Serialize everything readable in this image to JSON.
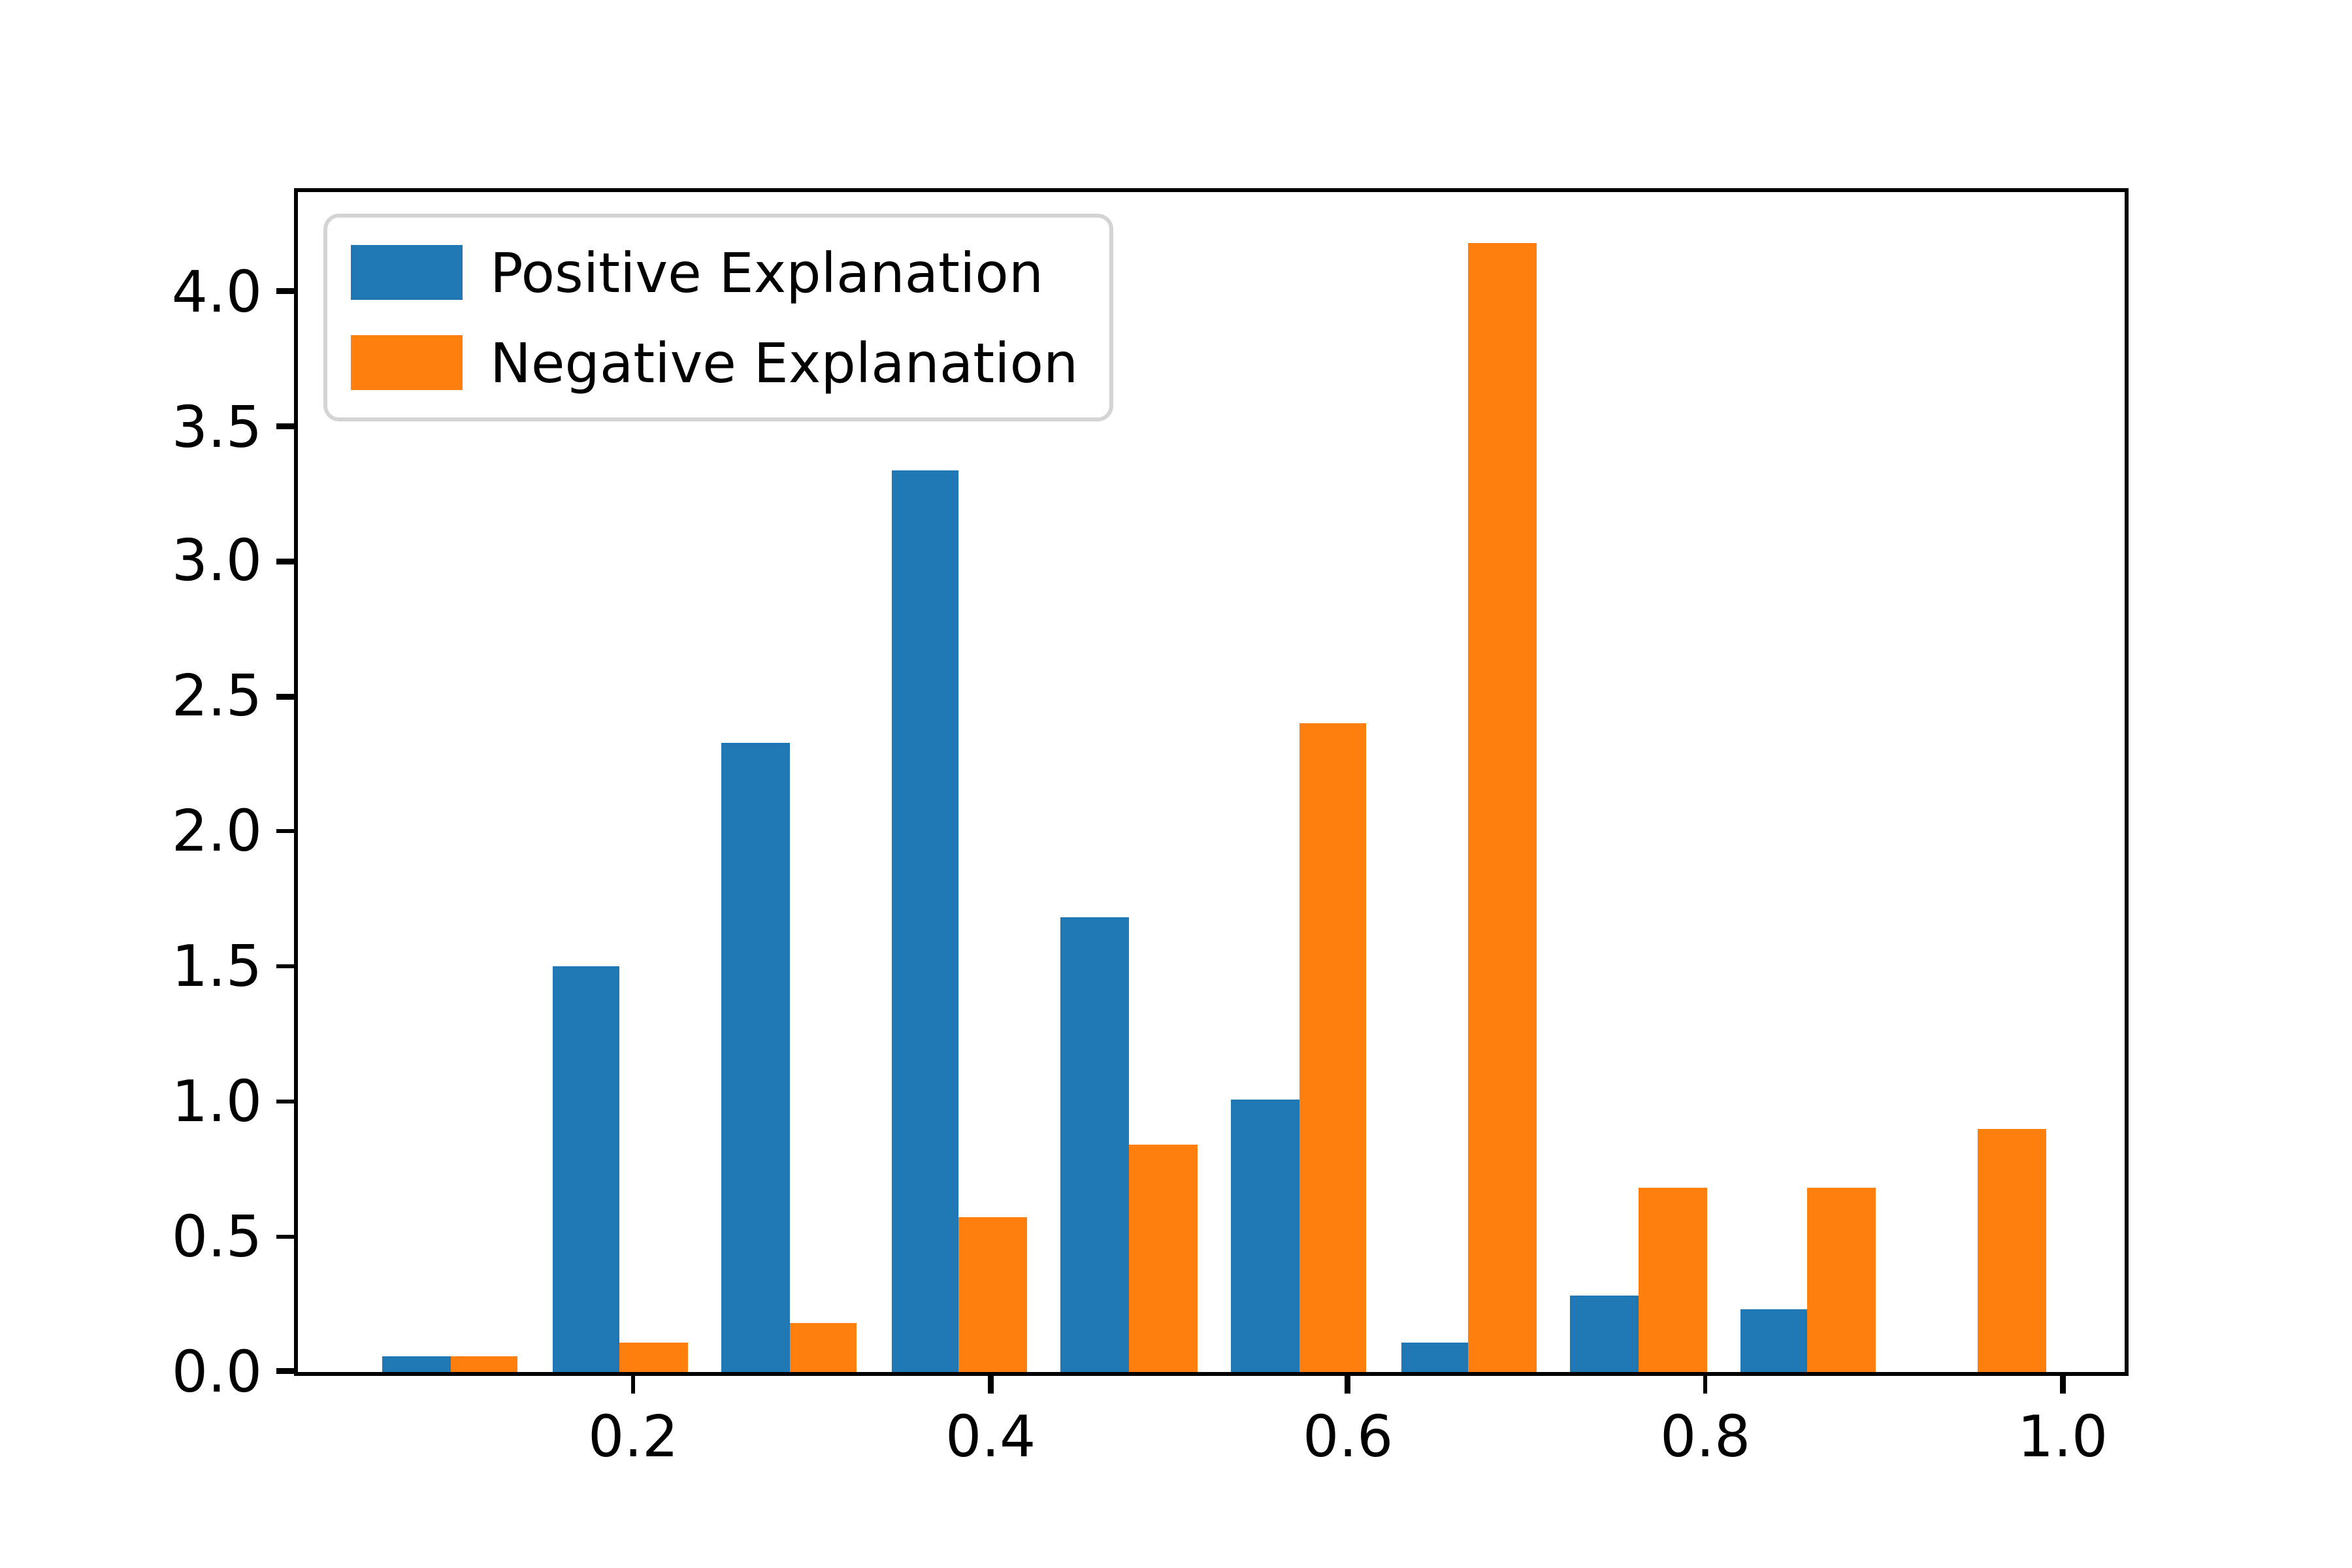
{
  "figure": {
    "background": "#ffffff"
  },
  "legend": {
    "position": "upper left",
    "items": [
      {
        "label": "Positive Explanation",
        "color": "#1f77b4"
      },
      {
        "label": "Negative Explanation",
        "color": "#ff7f0e"
      }
    ]
  },
  "chart_data": {
    "type": "bar",
    "subtype": "grouped-histogram",
    "title": "",
    "xlabel": "",
    "ylabel": "",
    "bin_edges": [
      0.05,
      0.145,
      0.24,
      0.335,
      0.43,
      0.525,
      0.62,
      0.715,
      0.81,
      0.905,
      1.0
    ],
    "series": [
      {
        "name": "Positive Explanation",
        "color": "#1f77b4",
        "values": [
          0.055,
          1.5,
          2.33,
          3.34,
          1.68,
          1.01,
          0.11,
          0.28,
          0.23,
          0
        ]
      },
      {
        "name": "Negative Explanation",
        "color": "#ff7f0e",
        "values": [
          0.055,
          0.11,
          0.18,
          0.57,
          0.84,
          2.4,
          4.18,
          0.68,
          0.68,
          0.9
        ]
      }
    ],
    "xlim": [
      0.012,
      1.035
    ],
    "ylim": [
      0,
      4.37
    ],
    "x_ticks": {
      "values": [
        0.2,
        0.4,
        0.6,
        0.8,
        1.0
      ],
      "labels": [
        "0.2",
        "0.4",
        "0.6",
        "0.8",
        "1.0"
      ]
    },
    "y_ticks": {
      "values": [
        0,
        0.5,
        1.0,
        1.5,
        2.0,
        2.5,
        3.0,
        3.5,
        4.0
      ],
      "labels": [
        "0.0",
        "0.5",
        "1.0",
        "1.5",
        "2.0",
        "2.5",
        "3.0",
        "3.5",
        "4.0"
      ]
    },
    "grid": false,
    "bar_fill_fraction": 0.8,
    "legend_position": "upper left"
  }
}
